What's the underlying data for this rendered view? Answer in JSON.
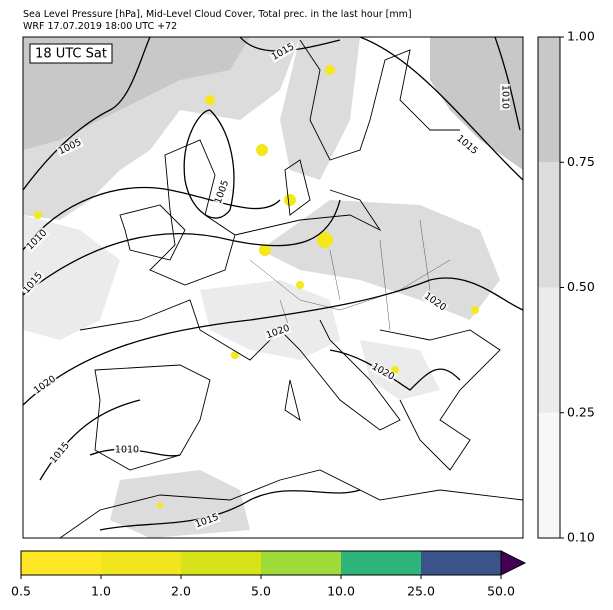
{
  "header": {
    "title": "Sea Level Pressure [hPa], Mid-Level Cloud Cover, Total prec. in the last hour [mm]",
    "subtitle": "WRF 17.07.2019 18:00 UTC +72"
  },
  "map": {
    "time_label": "18 UTC Sat",
    "isobar_labels": [
      1015,
      1010,
      1015,
      1005,
      1005,
      1010,
      1015,
      1020,
      1020,
      1020,
      1020,
      1015,
      1010,
      1015
    ]
  },
  "cloud_colorbar": {
    "ticks": [
      {
        "value": 0.1,
        "label": "0.10"
      },
      {
        "value": 0.25,
        "label": "0.25"
      },
      {
        "value": 0.5,
        "label": "0.50"
      },
      {
        "value": 0.75,
        "label": "0.75"
      },
      {
        "value": 1,
        "label": "1.00"
      }
    ],
    "colors": [
      "#f7f7f7",
      "#ebebeb",
      "#dcdcdc",
      "#c8c8c8"
    ]
  },
  "precip_colorbar": {
    "ticks": [
      {
        "value": 0.5,
        "label": "0.5"
      },
      {
        "value": 1,
        "label": "1.0"
      },
      {
        "value": 2,
        "label": "2.0"
      },
      {
        "value": 5,
        "label": "5.0"
      },
      {
        "value": 10,
        "label": "10.0"
      },
      {
        "value": 25,
        "label": "25.0"
      },
      {
        "value": 50,
        "label": "50.0"
      }
    ],
    "colors": [
      "#fde725",
      "#f1e51d",
      "#d8e219",
      "#a0da39",
      "#2fb47c",
      "#3b528b"
    ],
    "extend_color": "#440154"
  }
}
